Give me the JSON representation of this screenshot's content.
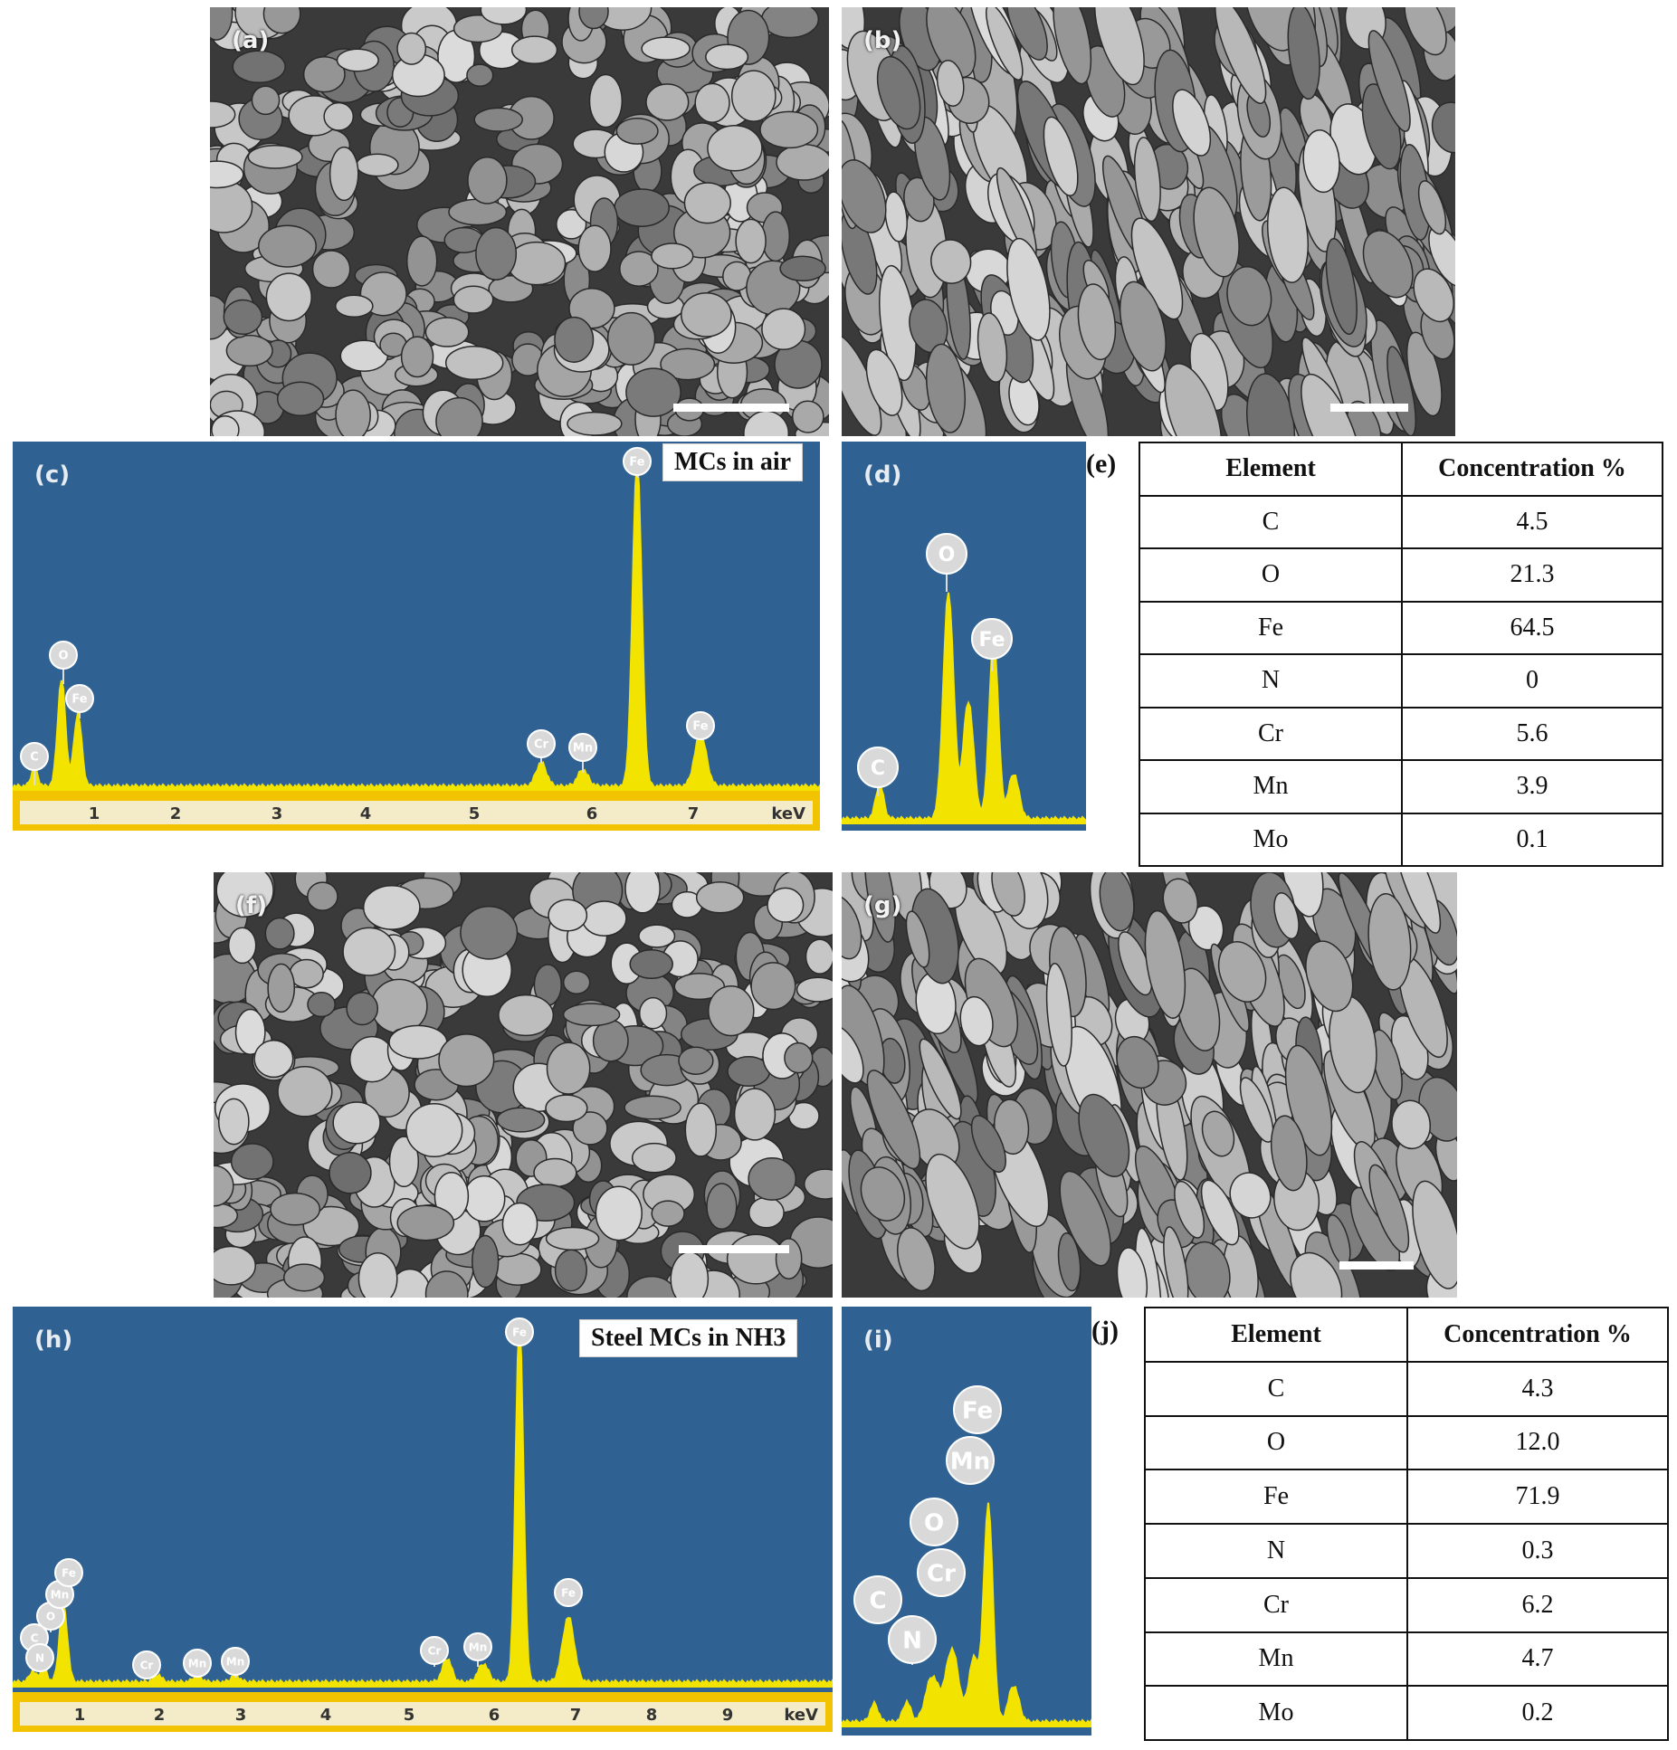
{
  "panels": {
    "a": "(a)",
    "b": "(b)",
    "c": "(c)",
    "d": "(d)",
    "e": "(e)",
    "f": "(f)",
    "g": "(g)",
    "h": "(h)",
    "i": "(i)",
    "j": "(j)"
  },
  "spectrum_c": {
    "title": "MCs in air",
    "ticks": [
      "1",
      "2",
      "3",
      "4",
      "5",
      "6",
      "7"
    ],
    "unit": "keV"
  },
  "spectrum_h": {
    "title": "Steel MCs in NH3",
    "ticks": [
      "1",
      "2",
      "3",
      "4",
      "5",
      "6",
      "7",
      "8",
      "9"
    ],
    "unit": "keV"
  },
  "peaks_c": [
    "C",
    "O",
    "Fe",
    "Cr",
    "Mn",
    "Fe",
    "Fe"
  ],
  "peaks_d": [
    "C",
    "O",
    "Fe"
  ],
  "peaks_h": [
    "C",
    "N",
    "O",
    "Mn",
    "Fe",
    "Cr",
    "Mn",
    "Mn",
    "Cr",
    "Mn",
    "Fe",
    "Fe"
  ],
  "peaks_i": [
    "Fe",
    "Mn",
    "O",
    "Cr",
    "C",
    "N"
  ],
  "table_e": {
    "headers": [
      "Element",
      "Concentration %"
    ],
    "rows": [
      [
        "C",
        "4.5"
      ],
      [
        "O",
        "21.3"
      ],
      [
        "Fe",
        "64.5"
      ],
      [
        "N",
        "0"
      ],
      [
        "Cr",
        "5.6"
      ],
      [
        "Mn",
        "3.9"
      ],
      [
        "Mo",
        "0.1"
      ]
    ]
  },
  "table_j": {
    "headers": [
      "Element",
      "Concentration %"
    ],
    "rows": [
      [
        "C",
        "4.3"
      ],
      [
        "O",
        "12.0"
      ],
      [
        "Fe",
        "71.9"
      ],
      [
        "N",
        "0.3"
      ],
      [
        "Cr",
        "6.2"
      ],
      [
        "Mn",
        "4.7"
      ],
      [
        "Mo",
        "0.2"
      ]
    ]
  },
  "colors": {
    "spectrum_bg": "#2f6293",
    "peak": "#f2e300",
    "axis": "#f2c300"
  }
}
